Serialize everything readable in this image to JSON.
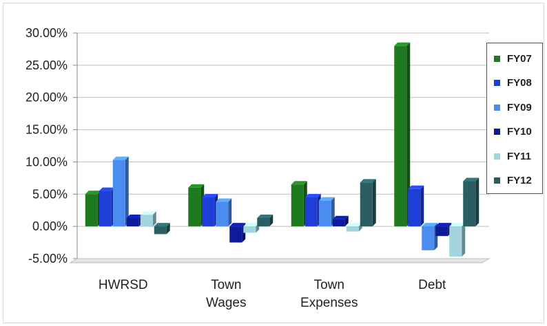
{
  "chart_data": {
    "type": "bar",
    "categories": [
      [
        "HWRSD"
      ],
      [
        "Town",
        "Wages"
      ],
      [
        "Town",
        "Expenses"
      ],
      [
        "Debt"
      ]
    ],
    "series": [
      {
        "name": "FY07",
        "color": "#1e7a1e",
        "values": [
          5.0,
          6.0,
          6.5,
          28.0
        ]
      },
      {
        "name": "FY08",
        "color": "#1f3ed8",
        "values": [
          5.5,
          4.5,
          4.5,
          5.8
        ]
      },
      {
        "name": "FY09",
        "color": "#4a8cf0",
        "values": [
          10.3,
          3.8,
          4.0,
          -3.7
        ]
      },
      {
        "name": "FY10",
        "color": "#0d1a9a",
        "values": [
          1.3,
          -2.5,
          1.1,
          -1.5
        ]
      },
      {
        "name": "FY11",
        "color": "#a3d5de",
        "values": [
          1.8,
          -1.0,
          -0.8,
          -4.7
        ]
      },
      {
        "name": "FY12",
        "color": "#2a5e62",
        "values": [
          -1.2,
          1.3,
          6.8,
          7.0
        ]
      }
    ],
    "ylim": [
      -5,
      30
    ],
    "yticks": [
      "30.00%",
      "25.00%",
      "20.00%",
      "15.00%",
      "10.00%",
      "5.00%",
      "0.00%",
      "-5.00%"
    ],
    "ytick_values": [
      30,
      25,
      20,
      15,
      10,
      5,
      0,
      -5
    ],
    "grid": true,
    "legend_position": "right",
    "title": "",
    "xlabel": "",
    "ylabel": ""
  }
}
